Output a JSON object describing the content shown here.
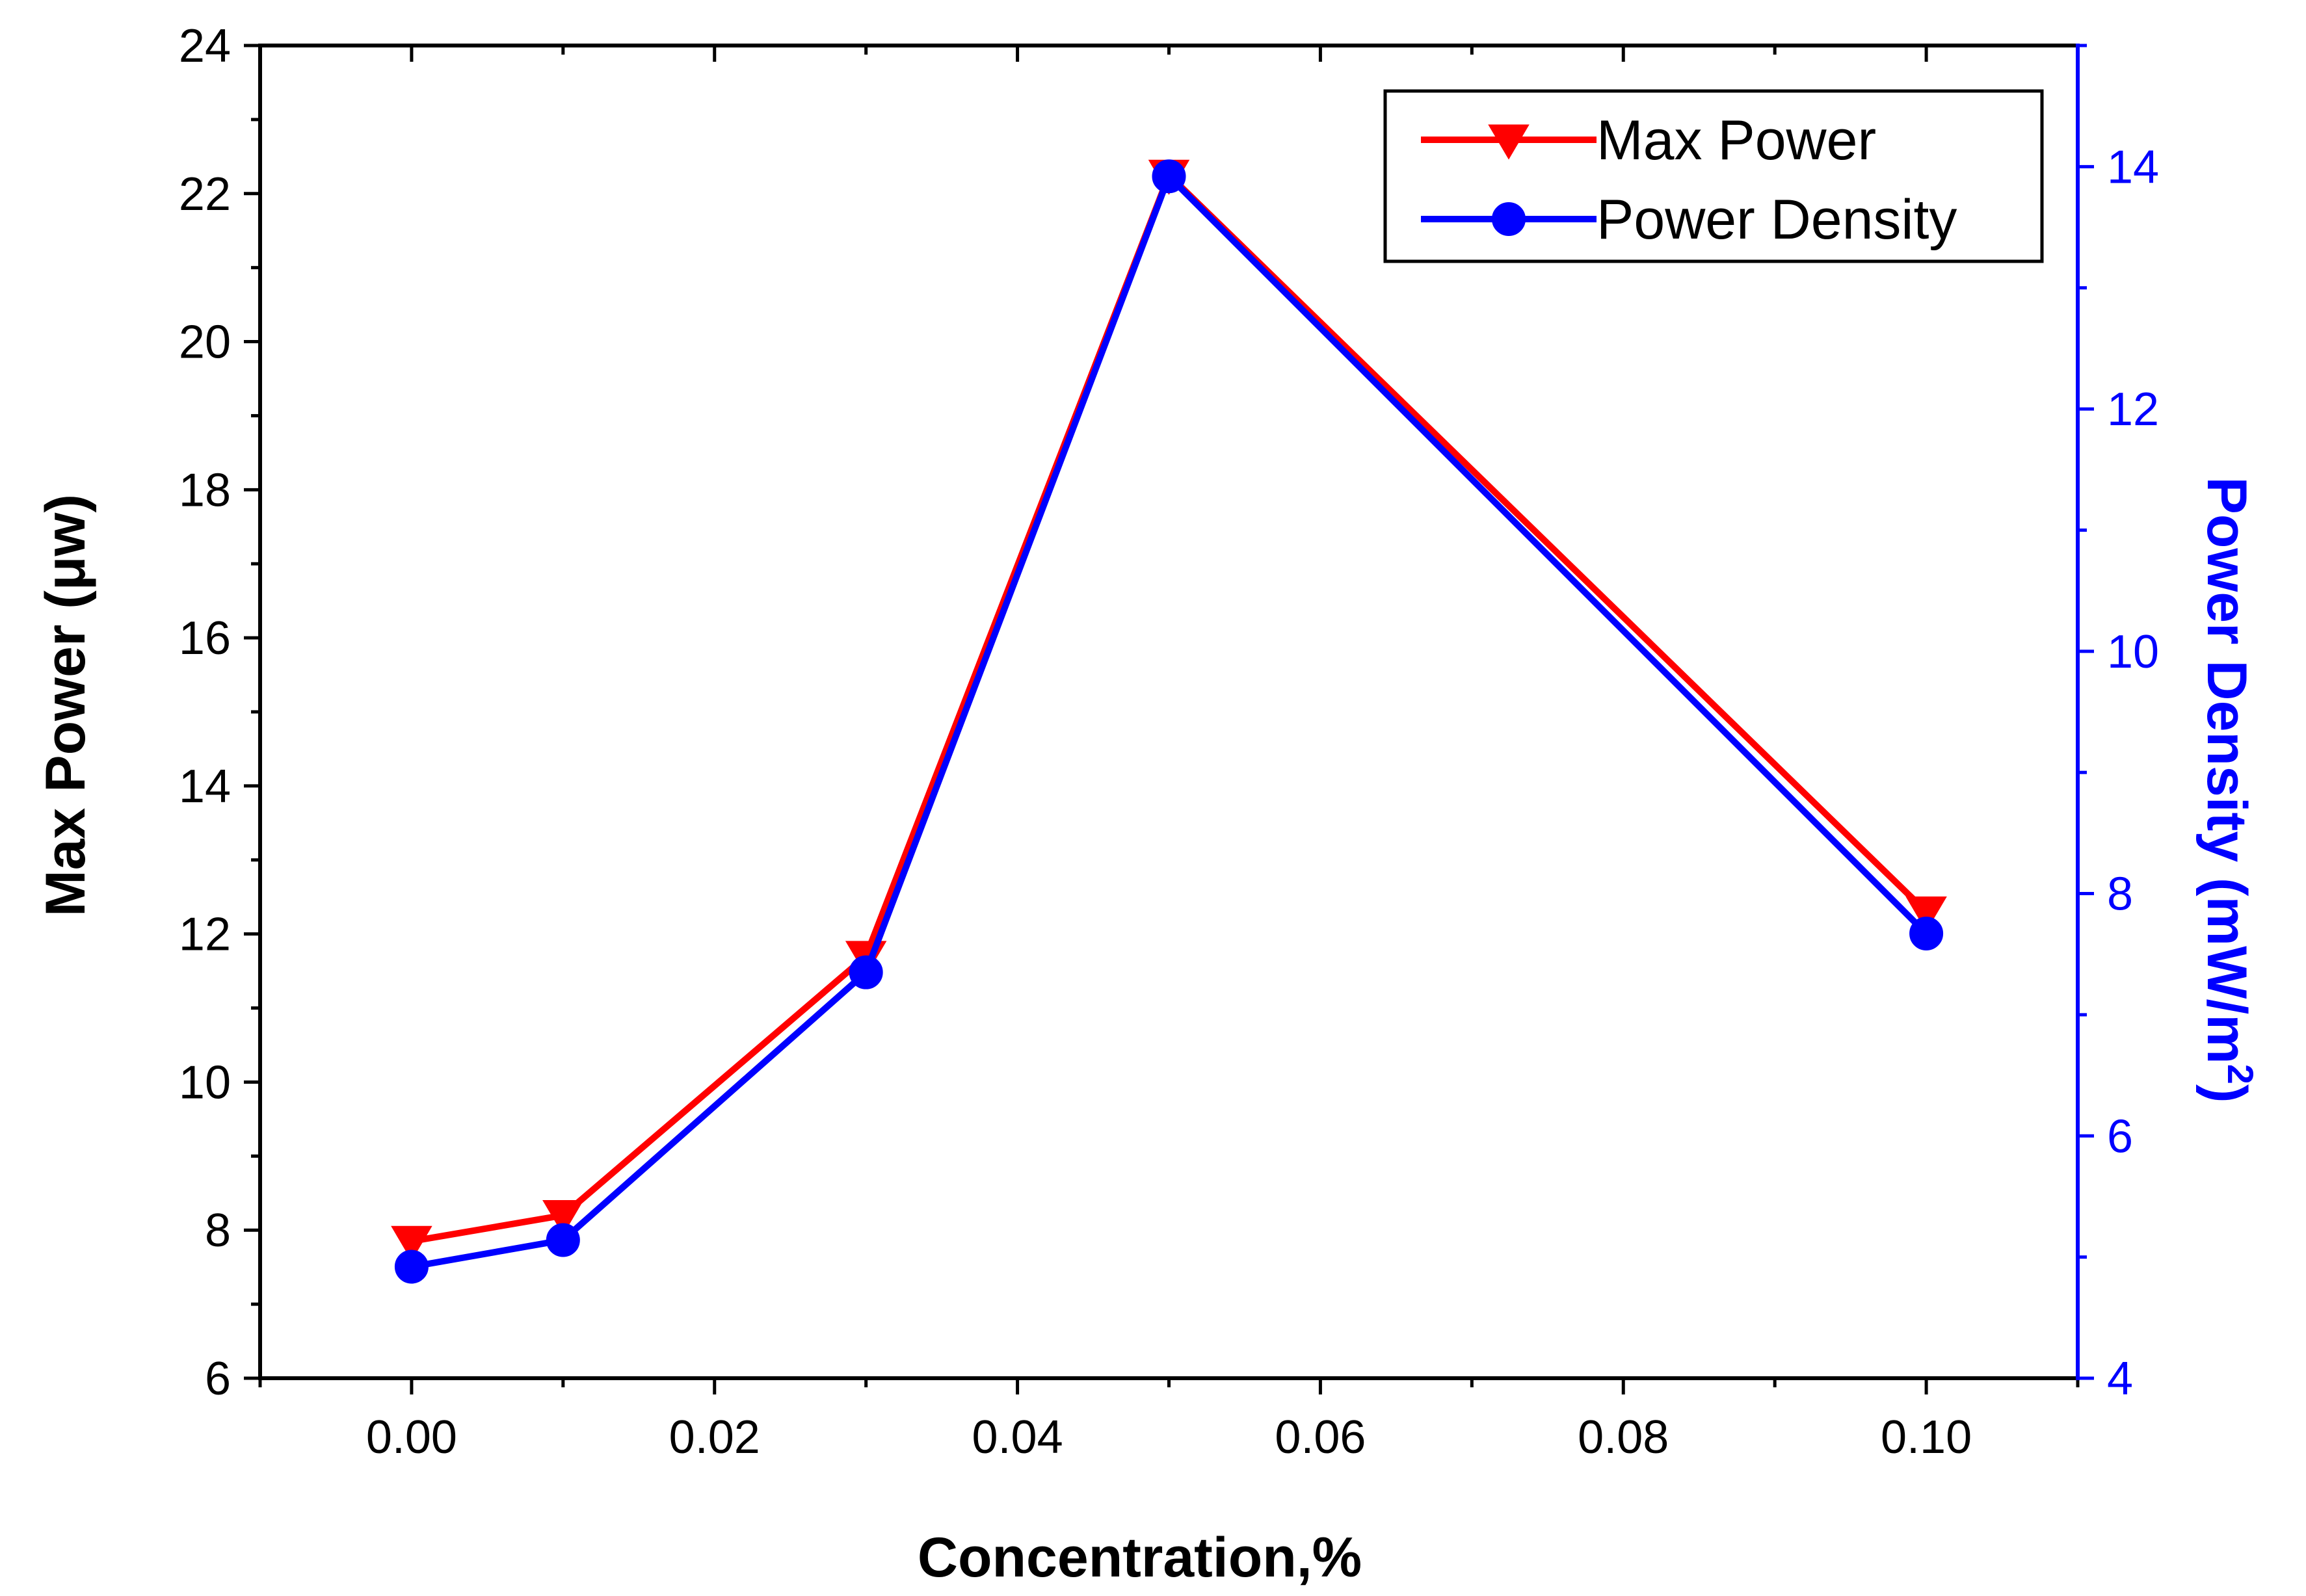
{
  "chart_data": {
    "type": "line",
    "title": "",
    "xlabel": "Concentration,%",
    "ylabel": "Max Power (μw)",
    "y2label_main": "Power Density (mW/m",
    "y2label_sup": "2",
    "y2label_end": ")",
    "xlim": [
      -0.01,
      0.11
    ],
    "ylim": [
      6,
      24
    ],
    "y2lim": [
      4,
      15
    ],
    "xticks": [
      "0.00",
      "0.02",
      "0.04",
      "0.06",
      "0.08",
      "0.10"
    ],
    "xtick_values": [
      0,
      0.02,
      0.04,
      0.06,
      0.08,
      0.1
    ],
    "yticks": [
      "6",
      "8",
      "10",
      "12",
      "14",
      "16",
      "18",
      "20",
      "22",
      "24"
    ],
    "ytick_values": [
      6,
      8,
      10,
      12,
      14,
      16,
      18,
      20,
      22,
      24
    ],
    "y2ticks": [
      "4",
      "6",
      "8",
      "10",
      "12",
      "14"
    ],
    "y2tick_values": [
      4,
      6,
      8,
      10,
      12,
      14
    ],
    "x": [
      0,
      0.01,
      0.03,
      0.05,
      0.1
    ],
    "series": [
      {
        "name": "Max Power",
        "axis": "left",
        "marker": "triangle-down",
        "color": "#ff0000",
        "values": [
          7.85,
          8.2,
          11.7,
          22.25,
          12.3
        ]
      },
      {
        "name": "Power Density",
        "axis": "right",
        "marker": "circle",
        "color": "#0000ff",
        "values": [
          4.92,
          5.14,
          7.35,
          13.92,
          7.67
        ]
      }
    ],
    "legend": "top-right",
    "grid": false
  }
}
